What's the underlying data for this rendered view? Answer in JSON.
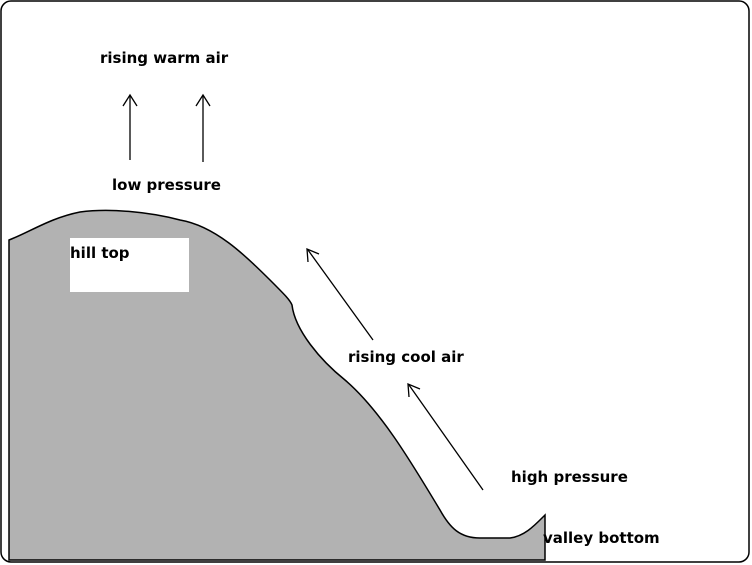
{
  "labels": {
    "rising_warm_air": "rising warm air",
    "low_pressure": "low pressure",
    "hill_top": "hill top",
    "rising_cool_air": "rising cool air",
    "high_pressure": "high pressure",
    "valley_bottom": "valley bottom"
  }
}
